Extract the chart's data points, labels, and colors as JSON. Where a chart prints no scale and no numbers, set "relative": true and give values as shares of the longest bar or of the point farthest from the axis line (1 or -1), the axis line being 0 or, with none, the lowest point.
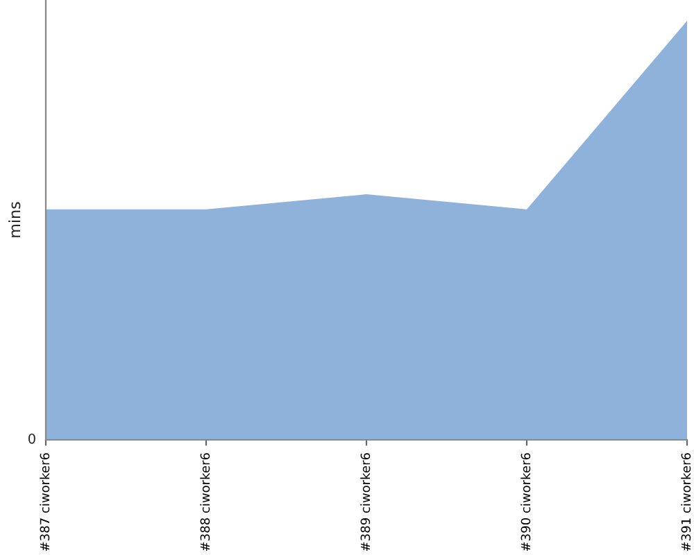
{
  "chart_data": {
    "type": "area",
    "ylabel": "mins",
    "relative": true,
    "categories": [
      "#387 ciworker6",
      "#388 ciworker6",
      "#389 ciworker6",
      "#390 ciworker6",
      "#391 ciworker6"
    ],
    "values": [
      0.55,
      0.55,
      0.586,
      0.55,
      1
    ],
    "color": "#8fb2da",
    "annotations": [
      "0"
    ],
    "grid": false,
    "legend": false
  }
}
